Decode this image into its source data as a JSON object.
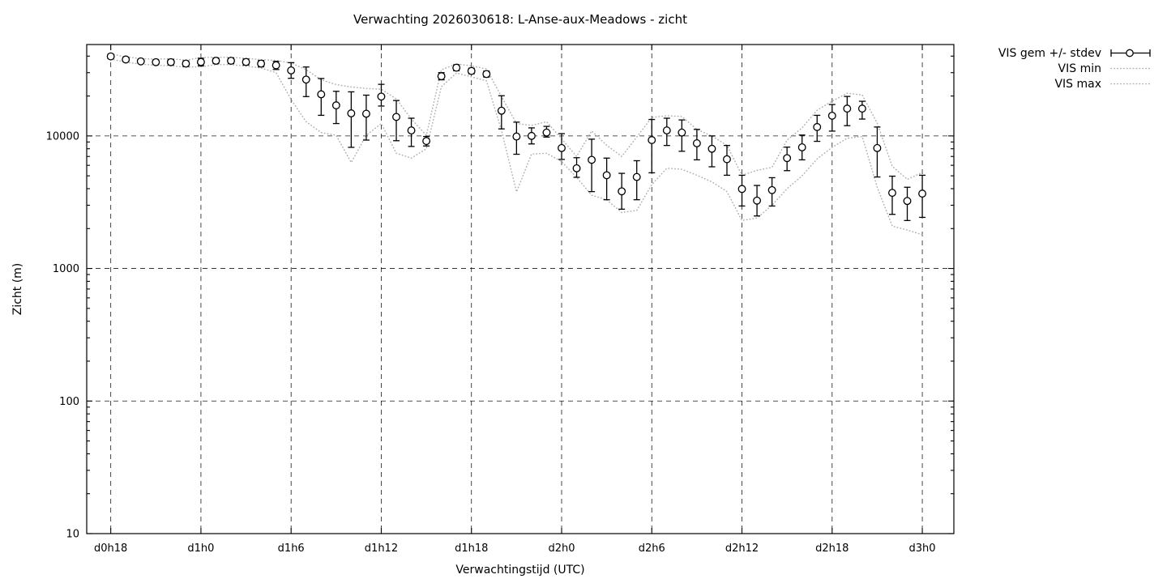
{
  "title": "Verwachting 2026030618: L-Anse-aux-Meadows - zicht",
  "chart_data": {
    "type": "line",
    "subtype": "points-with-errorbars-and-minmax-envelope",
    "title": "Verwachting 2026030618: L-Anse-aux-Meadows - zicht",
    "xlabel": "Verwachtingstijd (UTC)",
    "ylabel": "Zicht (m)",
    "y_scale": "log10",
    "ylim": [
      10,
      48900
    ],
    "x_hours_lim": [
      16.4,
      74.1
    ],
    "grid": true,
    "legend_position": "outside-top-right",
    "x_ticks": {
      "hours": [
        18,
        24,
        30,
        36,
        42,
        48,
        54,
        60,
        66,
        72
      ],
      "labels": [
        "d0h18",
        "d1h0",
        "d1h6",
        "d1h12",
        "d1h18",
        "d2h0",
        "d2h6",
        "d2h12",
        "d2h18",
        "d3h0"
      ]
    },
    "y_ticks": {
      "values": [
        10,
        100,
        1000,
        10000
      ],
      "labels": [
        "10",
        "100",
        "1000",
        "10000"
      ]
    },
    "hours": [
      18,
      19,
      20,
      21,
      22,
      23,
      24,
      25,
      26,
      27,
      28,
      29,
      30,
      31,
      32,
      33,
      34,
      35,
      36,
      37,
      38,
      39,
      40,
      41,
      42,
      43,
      44,
      45,
      46,
      47,
      48,
      49,
      50,
      51,
      52,
      53,
      54,
      55,
      56,
      57,
      58,
      59,
      60,
      61,
      62,
      63,
      64,
      65,
      66,
      67,
      68,
      69,
      70,
      71,
      72
    ],
    "series": [
      {
        "name": "VIS gem +/- stdev",
        "type": "points+errorbars",
        "mean": [
          39800,
          37700,
          36500,
          36000,
          36000,
          35100,
          36100,
          36900,
          36900,
          36100,
          35100,
          34100,
          31200,
          26600,
          20600,
          17000,
          14800,
          14700,
          19800,
          13900,
          11000,
          9150,
          28200,
          32700,
          30900,
          29300,
          15500,
          9900,
          10000,
          10600,
          8100,
          5700,
          6600,
          5050,
          3820,
          4900,
          9300,
          11000,
          10600,
          8800,
          8000,
          6670,
          3980,
          3250,
          3900,
          6800,
          8200,
          11670,
          14200,
          16070,
          16070,
          8100,
          3720,
          3230,
          3670
        ],
        "err_hi": [
          41300,
          39100,
          37900,
          37400,
          37800,
          36800,
          38500,
          38700,
          38700,
          38000,
          37000,
          36500,
          35700,
          33100,
          27100,
          21700,
          21500,
          20300,
          24500,
          18500,
          13600,
          9900,
          30000,
          34400,
          32400,
          30800,
          20100,
          12700,
          11500,
          11800,
          10400,
          6850,
          9450,
          6800,
          5220,
          6500,
          13300,
          13600,
          13200,
          11200,
          10000,
          8470,
          5050,
          4230,
          4840,
          8230,
          10150,
          14300,
          17250,
          19850,
          18250,
          11670,
          4970,
          4100,
          5050
        ],
        "err_lo": [
          38300,
          36400,
          35200,
          34600,
          34300,
          33400,
          33800,
          35100,
          35100,
          34200,
          33200,
          31700,
          27200,
          19800,
          14300,
          12400,
          8200,
          9300,
          16800,
          9200,
          8330,
          8400,
          26500,
          31000,
          29400,
          27800,
          11300,
          7270,
          8700,
          9800,
          6650,
          4870,
          3800,
          3300,
          2800,
          3300,
          5270,
          8470,
          7660,
          6600,
          5850,
          5050,
          2960,
          2490,
          2960,
          5470,
          6600,
          9100,
          10870,
          11950,
          13400,
          4900,
          2560,
          2300,
          2430
        ]
      },
      {
        "name": "VIS min",
        "type": "dotted-line",
        "values": [
          38000,
          36000,
          34800,
          34100,
          33800,
          33000,
          33200,
          34500,
          34500,
          33600,
          32500,
          30000,
          18800,
          12800,
          10600,
          10100,
          6300,
          10100,
          12400,
          7400,
          6800,
          8000,
          23500,
          29800,
          27900,
          26000,
          11000,
          3780,
          7300,
          7400,
          6400,
          4870,
          3570,
          3300,
          2640,
          2740,
          4300,
          5700,
          5600,
          5050,
          4500,
          3800,
          2300,
          2400,
          3000,
          4000,
          5000,
          6700,
          8200,
          9600,
          9900,
          4100,
          2090,
          1950,
          1800
        ]
      },
      {
        "name": "VIS max",
        "type": "dotted-line",
        "values": [
          41500,
          39500,
          38300,
          37900,
          38200,
          37300,
          39000,
          39200,
          39200,
          38500,
          37600,
          37100,
          35500,
          31600,
          26500,
          24400,
          23400,
          22800,
          22500,
          19000,
          13400,
          10100,
          31500,
          34900,
          33800,
          32000,
          19800,
          12400,
          12000,
          12800,
          9500,
          7000,
          10900,
          8500,
          7000,
          9800,
          13800,
          14200,
          14000,
          11200,
          10000,
          8500,
          5050,
          5500,
          5800,
          9300,
          11500,
          15600,
          18300,
          21000,
          20400,
          12500,
          5900,
          4700,
          5300
        ]
      }
    ],
    "colors": {
      "mean": "#000000",
      "minmax": "#b0b0b0",
      "background": "#ffffff"
    }
  }
}
